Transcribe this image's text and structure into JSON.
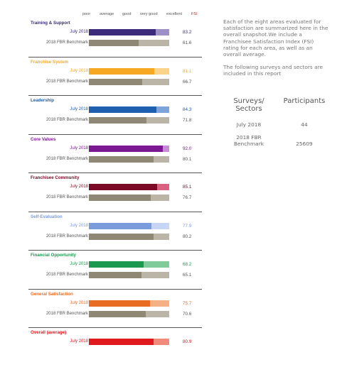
{
  "scale_labels": [
    "poor",
    "average",
    "good",
    "very good",
    "excellent",
    "FSI"
  ],
  "colors": {
    "benchmark_fill": "#8e8875",
    "benchmark_rest": "#bab5a6",
    "fsi_label": "#c62828"
  },
  "chart_data": {
    "type": "bar",
    "orientation": "horizontal",
    "xlim": [
      0,
      100
    ],
    "groups": [
      {
        "title": "Training & Support",
        "color": "#3c2a7a",
        "light": "#9d90c7",
        "current_label": "July 2018",
        "current": 83.2,
        "benchmark_label": "2018 FBR Benchmark",
        "benchmark": 61.6
      },
      {
        "title": "Franchise System",
        "color": "#f7a823",
        "light": "#fbd48a",
        "current_label": "July 2018",
        "current": 81.1,
        "benchmark_label": "2018 FBR Benchmark",
        "benchmark": 66.7
      },
      {
        "title": "Leadership",
        "color": "#1f5fb0",
        "light": "#7ea4dc",
        "current_label": "July 2018",
        "current": 84.3,
        "benchmark_label": "2018 FBR Benchmark",
        "benchmark": 71.8
      },
      {
        "title": "Core Values",
        "color": "#7d1893",
        "light": "#c78ad6",
        "current_label": "July 2018",
        "current": 92.0,
        "benchmark_label": "2018 FBR Benchmark",
        "benchmark": 80.1
      },
      {
        "title": "Franchisee Community",
        "color": "#7c0a26",
        "light": "#d9607f",
        "current_label": "July 2018",
        "current": 85.1,
        "benchmark_label": "2018 FBR Benchmark",
        "benchmark": 76.7
      },
      {
        "title": "Self-Evaluation",
        "color": "#7a9bdc",
        "light": "#c7d6f4",
        "current_label": "July 2018",
        "current": 77.9,
        "benchmark_label": "2018 FBR Benchmark",
        "benchmark": 80.2
      },
      {
        "title": "Financial Opportunity",
        "color": "#1b9a4f",
        "light": "#7fcb9a",
        "current_label": "July 2018",
        "current": 68.2,
        "benchmark_label": "2018 FBR Benchmark",
        "benchmark": 65.1
      },
      {
        "title": "General Satisfaction",
        "color": "#e86c22",
        "light": "#f5b184",
        "current_label": "July 2018",
        "current": 75.7,
        "benchmark_label": "2018 FBR Benchmark",
        "benchmark": 70.6
      },
      {
        "title": "Overall (average)",
        "color": "#e0191e",
        "light": "#f08a7a",
        "current_label": "July 2018",
        "current": 80.9
      }
    ]
  },
  "description": "Each of the eight areas evaluated for satisfaction are summarized here in the overall snapshot.We include a Franchisee Satisfaction Index (FSI) rating for each area, as well as an overall average.",
  "surveys_note": "The following surveys and sectors are included in this report",
  "table": {
    "col1_header_line1": "Surveys/",
    "col1_header_line2": "Sectors",
    "col2_header": "Participants",
    "rows": [
      {
        "name": "July 2018",
        "name_line2": "",
        "participants": "44"
      },
      {
        "name": "2018 FBR",
        "name_line2": "Benchmark",
        "participants": "25609"
      }
    ]
  }
}
